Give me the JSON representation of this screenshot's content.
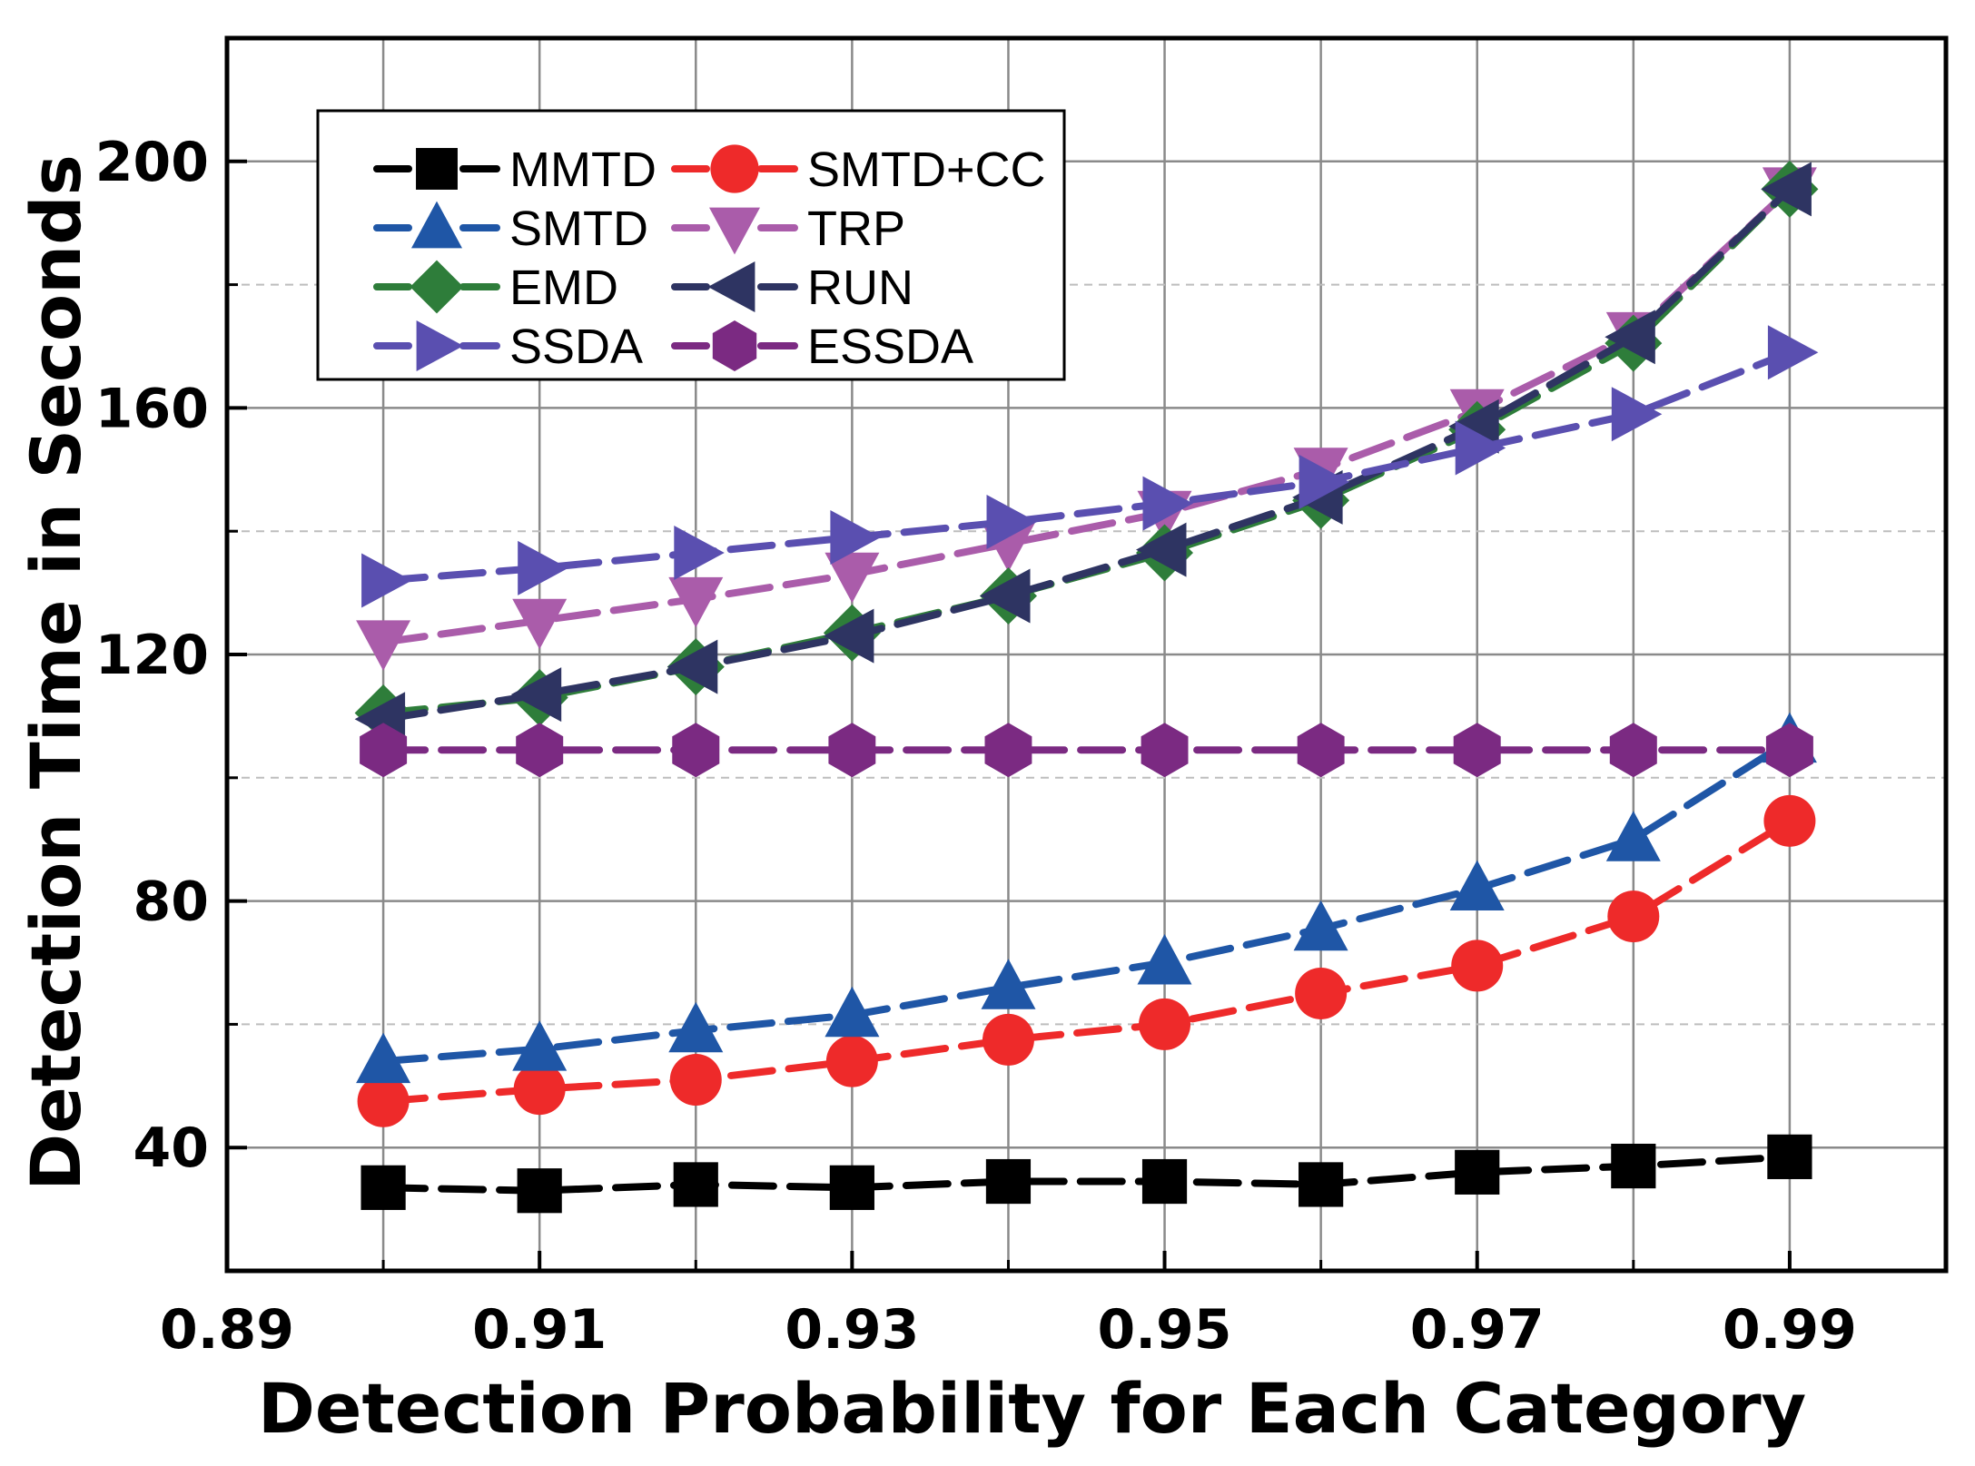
{
  "chart_data": {
    "type": "line",
    "title": "",
    "xlabel": "Detection Probability for Each Category",
    "ylabel": "Detection Time in Seconds",
    "xlim": [
      0.89,
      1.0
    ],
    "ylim": [
      20,
      220
    ],
    "xticks": [
      0.89,
      0.91,
      0.93,
      0.95,
      0.97,
      0.99
    ],
    "xtick_labels": [
      "0.89",
      "0.91",
      "0.93",
      "0.95",
      "0.97",
      "0.99"
    ],
    "yticks": [
      40,
      80,
      120,
      160,
      200
    ],
    "ytick_labels": [
      "40",
      "80",
      "120",
      "160",
      "200"
    ],
    "grid": true,
    "legend_position": "top-left",
    "x": [
      0.9,
      0.91,
      0.92,
      0.93,
      0.94,
      0.95,
      0.96,
      0.97,
      0.98,
      0.99
    ],
    "series": [
      {
        "name": "MMTD",
        "color": "#000000",
        "marker": "square",
        "values": [
          33.5,
          33.0,
          34.0,
          33.5,
          34.5,
          34.5,
          34.0,
          36.0,
          37.0,
          38.5
        ]
      },
      {
        "name": "SMTD+CC",
        "color": "#ee2a2a",
        "marker": "circle",
        "values": [
          47.5,
          49.5,
          51.0,
          54.0,
          57.5,
          60.0,
          65.0,
          69.5,
          77.5,
          93.0
        ]
      },
      {
        "name": "SMTD",
        "color": "#1f56a6",
        "marker": "triangle-up",
        "values": [
          54.0,
          56.0,
          59.0,
          61.5,
          66.0,
          70.0,
          75.5,
          82.0,
          90.0,
          106.0
        ]
      },
      {
        "name": "TRP",
        "color": "#aa5caa",
        "marker": "triangle-down",
        "values": [
          122.0,
          125.5,
          129.0,
          133.0,
          138.0,
          143.0,
          150.0,
          159.5,
          172.0,
          195.5
        ]
      },
      {
        "name": "EMD",
        "color": "#2e7d3a",
        "marker": "diamond",
        "values": [
          110.5,
          113.0,
          118.0,
          123.5,
          129.5,
          136.5,
          145.0,
          156.5,
          170.5,
          195.5
        ]
      },
      {
        "name": "RUN",
        "color": "#2e3462",
        "marker": "triangle-left",
        "values": [
          109.5,
          113.5,
          118.0,
          123.0,
          129.5,
          137.0,
          145.5,
          157.0,
          171.5,
          195.5
        ]
      },
      {
        "name": "SSDA",
        "color": "#5a4fb0",
        "marker": "triangle-right",
        "values": [
          132.0,
          134.0,
          136.5,
          139.0,
          141.5,
          144.5,
          148.0,
          153.5,
          159.0,
          169.0
        ]
      },
      {
        "name": "ESSDA",
        "color": "#7b2a82",
        "marker": "hexagon",
        "values": [
          104.5,
          104.5,
          104.5,
          104.5,
          104.5,
          104.5,
          104.5,
          104.5,
          104.5,
          104.5
        ]
      }
    ],
    "legend_order": [
      "MMTD",
      "SMTD+CC",
      "SMTD",
      "TRP",
      "EMD",
      "RUN",
      "SSDA",
      "ESSDA"
    ]
  }
}
